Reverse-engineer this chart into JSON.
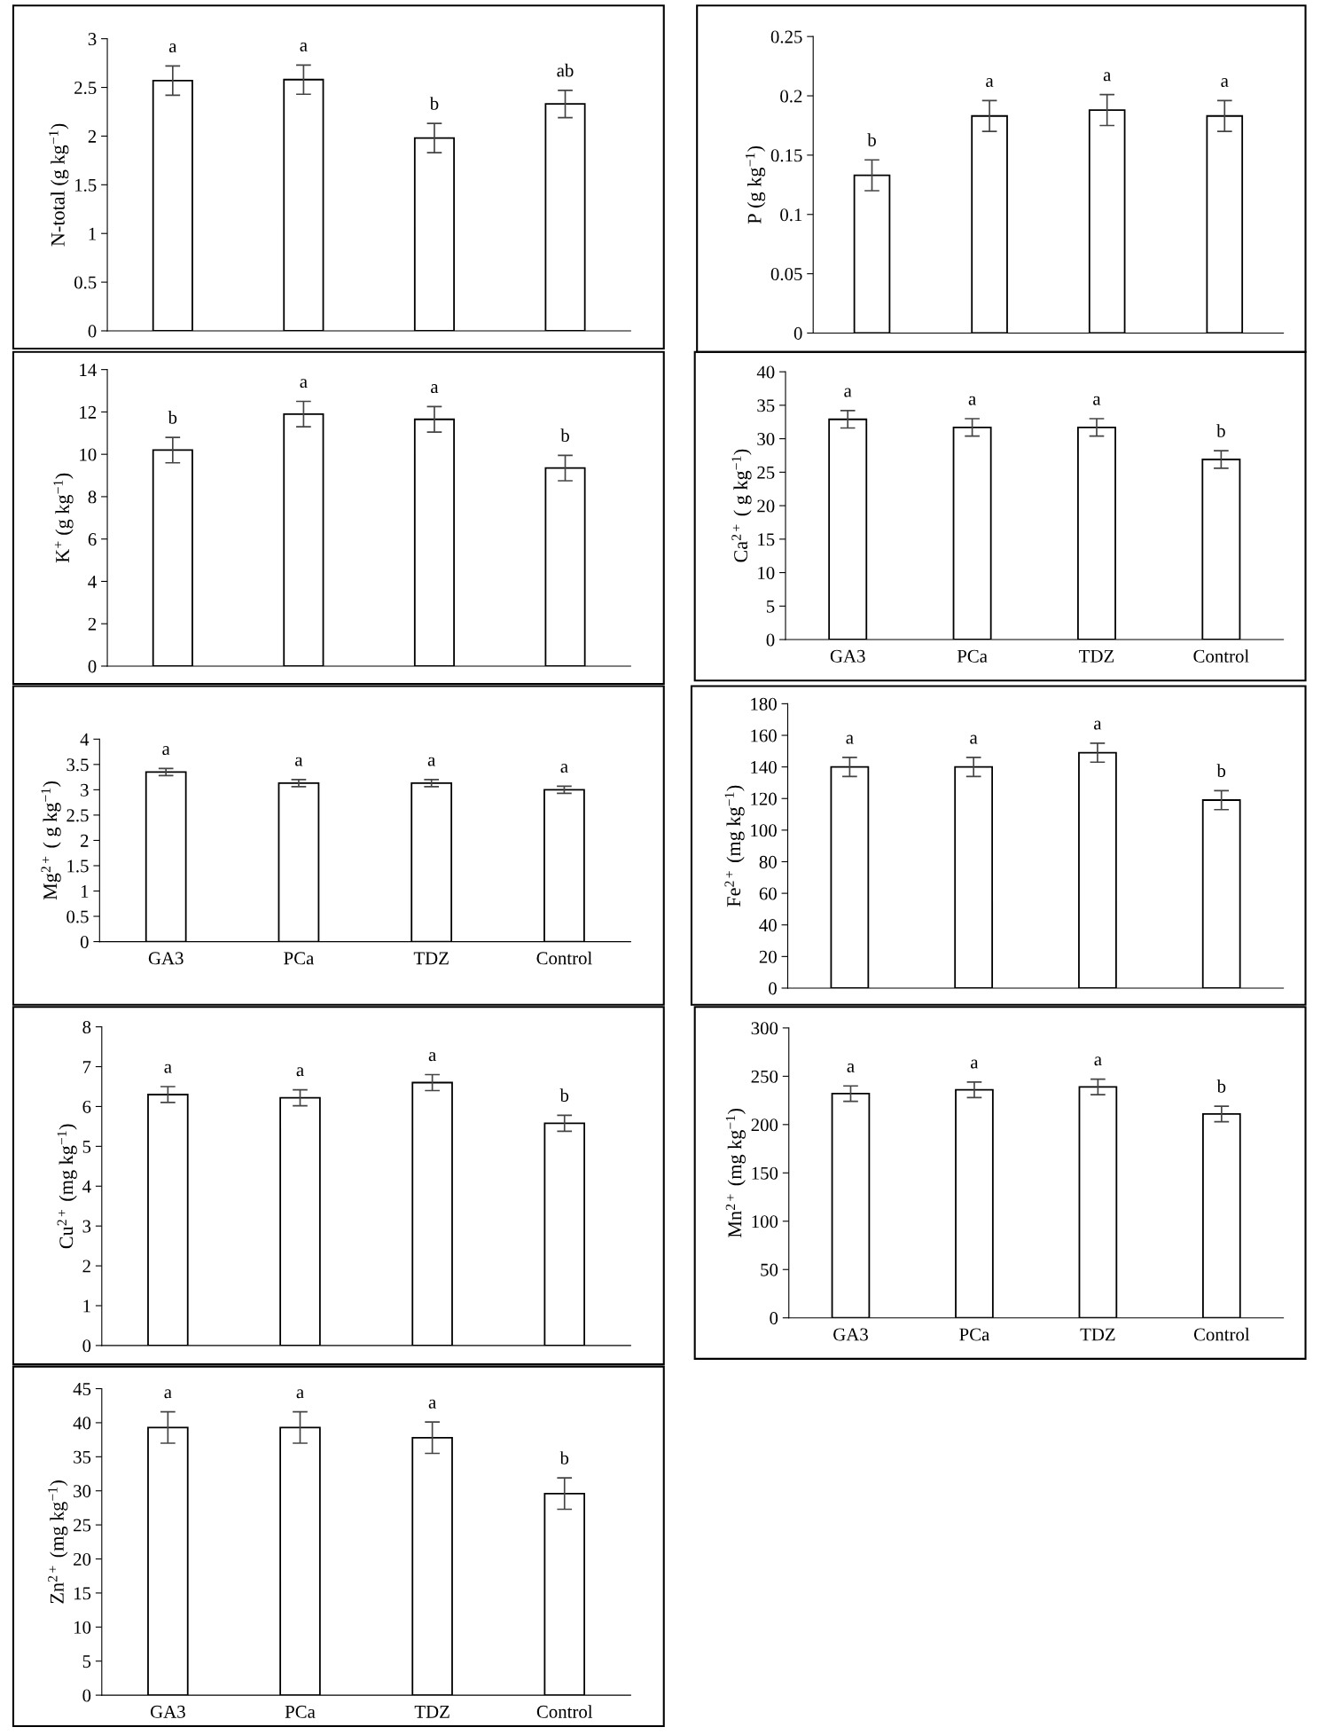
{
  "chart_data": [
    {
      "type": "bar",
      "ylabel": "N-total (g kg$^{−1}$)",
      "categories": [
        null,
        null,
        null,
        null
      ],
      "values": [
        2.57,
        2.58,
        1.98,
        2.33
      ],
      "errors": [
        0.15,
        0.15,
        0.15,
        0.14
      ],
      "color": "#ffffff",
      "ylim": [
        0,
        3
      ],
      "yticks": [
        0,
        0.5,
        1,
        1.5,
        2,
        2.5,
        3
      ],
      "annotations": [
        "a",
        "a",
        "b",
        "ab"
      ]
    },
    {
      "type": "bar",
      "ylabel": "P (g kg$^{−1}$)",
      "categories": [
        null,
        null,
        null,
        null
      ],
      "values": [
        0.133,
        0.183,
        0.188,
        0.183
      ],
      "errors": [
        0.013,
        0.013,
        0.013,
        0.013
      ],
      "color": "#ffffff",
      "ylim": [
        0,
        0.25
      ],
      "yticks": [
        0,
        0.05,
        0.1,
        0.15,
        0.2,
        0.25
      ],
      "annotations": [
        "b",
        "a",
        "a",
        "a"
      ]
    },
    {
      "type": "bar",
      "ylabel": "K$^{+}$ (g kg$^{−1}$)",
      "categories": [
        null,
        null,
        null,
        null
      ],
      "values": [
        10.2,
        11.9,
        11.65,
        9.35
      ],
      "errors": [
        0.6,
        0.6,
        0.6,
        0.6
      ],
      "color": "#ffffff",
      "ylim": [
        0,
        14
      ],
      "yticks": [
        0,
        2,
        4,
        6,
        8,
        10,
        12,
        14
      ],
      "annotations": [
        "b",
        "a",
        "a",
        "b"
      ]
    },
    {
      "type": "bar",
      "ylabel": "Ca$^{2+}$ ( g kg$^{−1}$)",
      "categories": [
        "GA3",
        "PCa",
        "TDZ",
        "Control"
      ],
      "values": [
        32.9,
        31.7,
        31.7,
        26.9
      ],
      "errors": [
        1.3,
        1.3,
        1.3,
        1.3
      ],
      "color": "#ffffff",
      "ylim": [
        0,
        40
      ],
      "yticks": [
        0,
        5,
        10,
        15,
        20,
        25,
        30,
        35,
        40
      ],
      "annotations": [
        "a",
        "a",
        "a",
        "b"
      ]
    },
    {
      "type": "bar",
      "ylabel": "Mg$^{2+}$ ( g kg$^{−1}$)",
      "categories": [
        "GA3",
        "PCa",
        "TDZ",
        "Control"
      ],
      "values": [
        3.35,
        3.13,
        3.13,
        3.0
      ],
      "errors": [
        0.07,
        0.07,
        0.07,
        0.07
      ],
      "color": "#ffffff",
      "ylim": [
        0,
        4
      ],
      "yticks": [
        0,
        0.5,
        1,
        1.5,
        2,
        2.5,
        3,
        3.5,
        4
      ],
      "annotations": [
        "a",
        "a",
        "a",
        "a"
      ]
    },
    {
      "type": "bar",
      "ylabel": "Fe$^{2+}$ (mg kg$^{−1}$)",
      "categories": [
        null,
        null,
        null,
        null
      ],
      "values": [
        140,
        140,
        149,
        119
      ],
      "errors": [
        6,
        6,
        6,
        6
      ],
      "color": "#ffffff",
      "ylim": [
        0,
        180
      ],
      "yticks": [
        0,
        20,
        40,
        60,
        80,
        100,
        120,
        140,
        160,
        180
      ],
      "annotations": [
        "a",
        "a",
        "a",
        "b"
      ]
    },
    {
      "type": "bar",
      "ylabel": "Cu$^{2+}$ (mg kg$^{−1}$)",
      "categories": [
        null,
        null,
        null,
        null
      ],
      "values": [
        6.3,
        6.22,
        6.6,
        5.58
      ],
      "errors": [
        0.2,
        0.2,
        0.2,
        0.2
      ],
      "color": "#ffffff",
      "ylim": [
        0,
        8
      ],
      "yticks": [
        0,
        1,
        2,
        3,
        4,
        5,
        6,
        7,
        8
      ],
      "annotations": [
        "a",
        "a",
        "a",
        "b"
      ]
    },
    {
      "type": "bar",
      "ylabel": "Mn$^{2+}$ (mg kg$^{−1}$)",
      "categories": [
        "GA3",
        "PCa",
        "TDZ",
        "Control"
      ],
      "values": [
        232,
        236,
        239,
        211
      ],
      "errors": [
        8,
        8,
        8,
        8
      ],
      "color": "#ffffff",
      "ylim": [
        0,
        300
      ],
      "yticks": [
        0,
        50,
        100,
        150,
        200,
        250,
        300
      ],
      "annotations": [
        "a",
        "a",
        "a",
        "b"
      ]
    },
    {
      "type": "bar",
      "ylabel": "Zn$^{2+}$ (mg kg$^{−1}$)",
      "categories": [
        "GA3",
        "PCa",
        "TDZ",
        "Control"
      ],
      "values": [
        39.3,
        39.3,
        37.8,
        29.6
      ],
      "errors": [
        2.3,
        2.3,
        2.3,
        2.3
      ],
      "color": "#ffffff",
      "ylim": [
        0,
        45
      ],
      "yticks": [
        0,
        5,
        10,
        15,
        20,
        25,
        30,
        35,
        40,
        45
      ],
      "annotations": [
        "a",
        "a",
        "a",
        "b"
      ]
    }
  ]
}
